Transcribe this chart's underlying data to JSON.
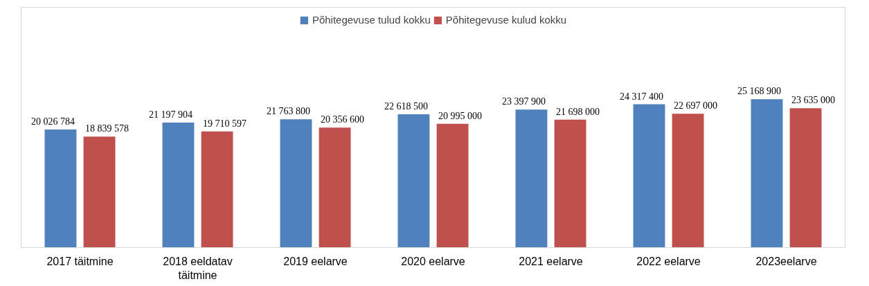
{
  "chart_data": {
    "type": "bar",
    "categories": [
      "2017 täitmine",
      "2018 eeldatav\ntäitmine",
      "2019 eelarve",
      "2020 eelarve",
      "2021 eelarve",
      "2022 eelarve",
      "2023eelarve"
    ],
    "series": [
      {
        "name": "Põhitegevuse tulud kokku",
        "color": "#4f81bd",
        "values": [
          20026784,
          21197904,
          21763800,
          22618500,
          23397900,
          24317400,
          25168900
        ],
        "value_labels": [
          "20 026 784",
          "21 197 904",
          "21 763 800",
          "22 618 500",
          "23 397 900",
          "24 317 400",
          "25 168 900"
        ]
      },
      {
        "name": "Põhitegevuse kulud kokku",
        "color": "#c0504d",
        "values": [
          18839578,
          19710597,
          20356600,
          20995000,
          21698000,
          22697000,
          23635000
        ],
        "value_labels": [
          "18 839 578",
          "19 710 597",
          "20 356 600",
          "20 995 000",
          "21 698 000",
          "22 697 000",
          "23 635 000"
        ]
      }
    ],
    "legend": "top",
    "grid": false
  }
}
